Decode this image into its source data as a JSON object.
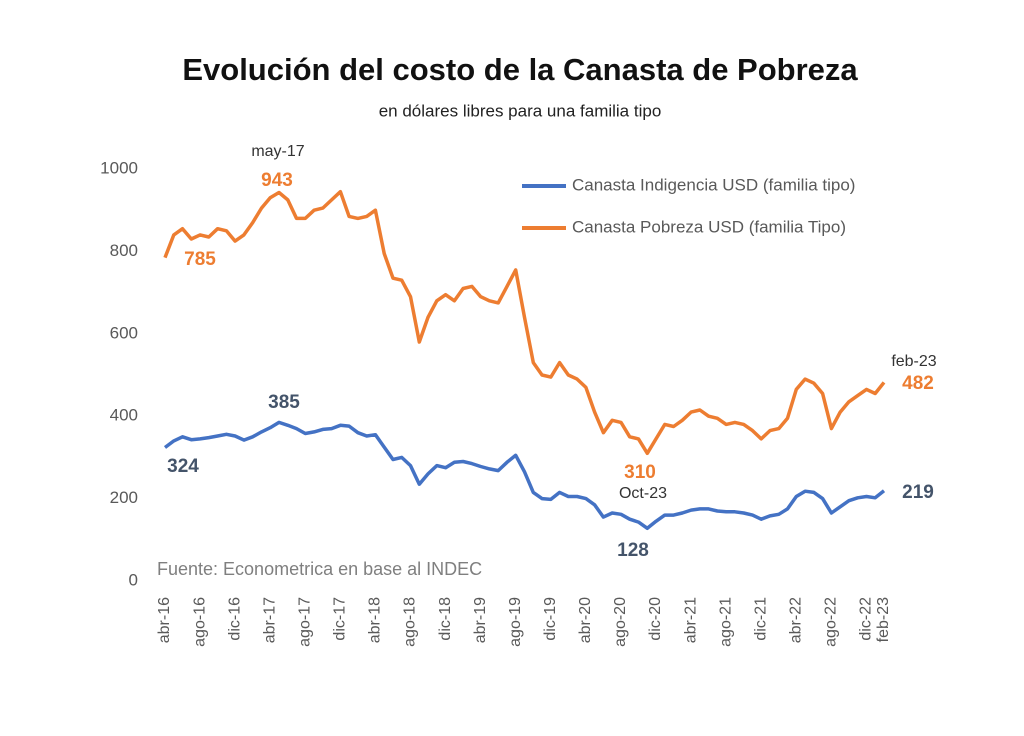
{
  "chart_data": {
    "type": "line",
    "title": "Evolución del costo de la Canasta de Pobreza",
    "subtitle": "en dólares libres para una familia tipo",
    "categories": [
      "abr-16",
      null,
      null,
      null,
      "ago-16",
      null,
      null,
      null,
      "dic-16",
      null,
      null,
      null,
      "abr-17",
      null,
      null,
      null,
      "ago-17",
      null,
      null,
      null,
      "dic-17",
      null,
      null,
      null,
      "abr-18",
      null,
      null,
      null,
      "ago-18",
      null,
      null,
      null,
      "dic-18",
      null,
      null,
      null,
      "abr-19",
      null,
      null,
      null,
      "ago-19",
      null,
      null,
      null,
      "dic-19",
      null,
      null,
      null,
      "abr-20",
      null,
      null,
      null,
      "ago-20",
      null,
      null,
      null,
      "dic-20",
      null,
      null,
      null,
      "abr-21",
      null,
      null,
      null,
      "ago-21",
      null,
      null,
      null,
      "dic-21",
      null,
      null,
      null,
      "abr-22",
      null,
      null,
      null,
      "ago-22",
      null,
      null,
      null,
      "dic-22",
      null,
      "feb-23"
    ],
    "series": [
      {
        "name": "Canasta Indigencia USD (familia tipo)",
        "color": "#4472c4",
        "values": [
          324,
          340,
          350,
          343,
          345,
          348,
          352,
          356,
          352,
          342,
          350,
          362,
          372,
          385,
          378,
          370,
          358,
          362,
          368,
          370,
          378,
          376,
          360,
          352,
          355,
          325,
          295,
          300,
          280,
          235,
          260,
          280,
          275,
          288,
          290,
          285,
          278,
          272,
          268,
          288,
          305,
          265,
          215,
          200,
          198,
          215,
          205,
          205,
          200,
          185,
          155,
          165,
          162,
          150,
          143,
          128,
          145,
          160,
          160,
          165,
          172,
          175,
          175,
          170,
          168,
          168,
          165,
          160,
          150,
          158,
          162,
          175,
          205,
          218,
          215,
          200,
          165,
          180,
          195,
          202,
          205,
          202,
          219
        ]
      },
      {
        "name": "Canasta Pobreza USD (familia Tipo)",
        "color": "#ed7d31",
        "values": [
          785,
          840,
          855,
          830,
          840,
          835,
          855,
          850,
          825,
          840,
          870,
          905,
          930,
          943,
          925,
          880,
          880,
          900,
          905,
          925,
          945,
          885,
          880,
          885,
          900,
          795,
          735,
          730,
          690,
          580,
          640,
          680,
          695,
          680,
          710,
          715,
          690,
          680,
          675,
          715,
          755,
          640,
          530,
          500,
          495,
          530,
          500,
          490,
          470,
          410,
          360,
          390,
          385,
          350,
          345,
          310,
          345,
          380,
          375,
          390,
          410,
          415,
          400,
          395,
          380,
          385,
          380,
          365,
          345,
          365,
          370,
          395,
          465,
          490,
          480,
          455,
          370,
          410,
          435,
          450,
          465,
          455,
          482
        ]
      }
    ],
    "annotations": [
      "may-17",
      "943",
      "785",
      "385",
      "324",
      "310",
      "Oct-23",
      "128",
      "feb-23",
      "482",
      "219"
    ],
    "source": "Fuente: Econometrica en base al INDEC",
    "ylim": [
      0,
      1000
    ],
    "yticks": [
      0,
      200,
      400,
      600,
      800,
      1000
    ],
    "grid": false,
    "legend": "top-right"
  }
}
